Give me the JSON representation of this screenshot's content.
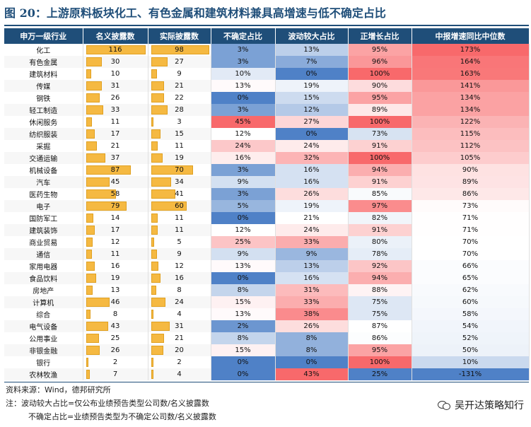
{
  "title": "图 20：上游原料板块化工、有色金属和建筑材料兼具高增速与低不确定占比",
  "columns": [
    "申万一级行业",
    "名义披露数",
    "实际披露数",
    "不确定占比",
    "波动较大占比",
    "正增长占比",
    "中报增速同比中位数"
  ],
  "colors": {
    "header_bg": "#1f4e79",
    "bar": "#f5b942",
    "blue_scale_end": "#4f81c7",
    "red_scale_end": "#f8696b"
  },
  "scales": {
    "uncertain_max": 45,
    "volatile_max": 43,
    "positive_min": 25,
    "positive_max": 100,
    "median_min": -131,
    "median_max": 173,
    "nominal_max": 116,
    "actual_max": 98
  },
  "rows": [
    {
      "industry": "化工",
      "nominal": 116,
      "actual": 98,
      "uncertain": 3,
      "volatile": 13,
      "positive": 95,
      "median": 173
    },
    {
      "industry": "有色金属",
      "nominal": 30,
      "actual": 27,
      "uncertain": 3,
      "volatile": 7,
      "positive": 96,
      "median": 164
    },
    {
      "industry": "建筑材料",
      "nominal": 10,
      "actual": 9,
      "uncertain": 10,
      "volatile": 0,
      "positive": 100,
      "median": 163
    },
    {
      "industry": "传媒",
      "nominal": 31,
      "actual": 21,
      "uncertain": 13,
      "volatile": 19,
      "positive": 90,
      "median": 141
    },
    {
      "industry": "钢铁",
      "nominal": 26,
      "actual": 22,
      "uncertain": 0,
      "volatile": 15,
      "positive": 95,
      "median": 134
    },
    {
      "industry": "轻工制造",
      "nominal": 33,
      "actual": 28,
      "uncertain": 3,
      "volatile": 12,
      "positive": 89,
      "median": 134
    },
    {
      "industry": "休闲服务",
      "nominal": 11,
      "actual": 3,
      "uncertain": 45,
      "volatile": 27,
      "positive": 100,
      "median": 122
    },
    {
      "industry": "纺织服装",
      "nominal": 17,
      "actual": 15,
      "uncertain": 12,
      "volatile": 0,
      "positive": 73,
      "median": 115
    },
    {
      "industry": "采掘",
      "nominal": 21,
      "actual": 11,
      "uncertain": 24,
      "volatile": 24,
      "positive": 91,
      "median": 112
    },
    {
      "industry": "交通运输",
      "nominal": 37,
      "actual": 19,
      "uncertain": 16,
      "volatile": 32,
      "positive": 100,
      "median": 105
    },
    {
      "industry": "机械设备",
      "nominal": 87,
      "actual": 70,
      "uncertain": 3,
      "volatile": 16,
      "positive": 94,
      "median": 90
    },
    {
      "industry": "汽车",
      "nominal": 45,
      "actual": 34,
      "uncertain": 9,
      "volatile": 16,
      "positive": 91,
      "median": 89
    },
    {
      "industry": "医药生物",
      "nominal": 58,
      "actual": 41,
      "uncertain": 3,
      "volatile": 26,
      "positive": 85,
      "median": 86
    },
    {
      "industry": "电子",
      "nominal": 79,
      "actual": 60,
      "uncertain": 5,
      "volatile": 19,
      "positive": 97,
      "median": 73
    },
    {
      "industry": "国防军工",
      "nominal": 14,
      "actual": 11,
      "uncertain": 0,
      "volatile": 21,
      "positive": 82,
      "median": 71
    },
    {
      "industry": "建筑装饰",
      "nominal": 17,
      "actual": 11,
      "uncertain": 12,
      "volatile": 24,
      "positive": 91,
      "median": 71
    },
    {
      "industry": "商业贸易",
      "nominal": 12,
      "actual": 5,
      "uncertain": 25,
      "volatile": 33,
      "positive": 80,
      "median": 70
    },
    {
      "industry": "通信",
      "nominal": 11,
      "actual": 9,
      "uncertain": 9,
      "volatile": 9,
      "positive": 78,
      "median": 70
    },
    {
      "industry": "家用电器",
      "nominal": 16,
      "actual": 12,
      "uncertain": 13,
      "volatile": 13,
      "positive": 92,
      "median": 66
    },
    {
      "industry": "食品饮料",
      "nominal": 19,
      "actual": 16,
      "uncertain": 0,
      "volatile": 16,
      "positive": 94,
      "median": 65
    },
    {
      "industry": "房地产",
      "nominal": 13,
      "actual": 8,
      "uncertain": 8,
      "volatile": 31,
      "positive": 88,
      "median": 62
    },
    {
      "industry": "计算机",
      "nominal": 46,
      "actual": 24,
      "uncertain": 15,
      "volatile": 33,
      "positive": 75,
      "median": 60
    },
    {
      "industry": "综合",
      "nominal": 8,
      "actual": 4,
      "uncertain": 13,
      "volatile": 38,
      "positive": 75,
      "median": 58
    },
    {
      "industry": "电气设备",
      "nominal": 43,
      "actual": 31,
      "uncertain": 2,
      "volatile": 26,
      "positive": 87,
      "median": 54
    },
    {
      "industry": "公用事业",
      "nominal": 25,
      "actual": 21,
      "uncertain": 8,
      "volatile": 8,
      "positive": 86,
      "median": 52
    },
    {
      "industry": "非银金融",
      "nominal": 26,
      "actual": 20,
      "uncertain": 15,
      "volatile": 8,
      "positive": 95,
      "median": 50
    },
    {
      "industry": "银行",
      "nominal": 2,
      "actual": 2,
      "uncertain": 0,
      "volatile": 0,
      "positive": 100,
      "median": 10
    },
    {
      "industry": "农林牧渔",
      "nominal": 7,
      "actual": 4,
      "uncertain": 0,
      "volatile": 43,
      "positive": 25,
      "median": -131
    }
  ],
  "footer": {
    "source": "资料来源：Wind，德邦研究所",
    "note1": "注：波动较大占比=仅公布业绩预告类型公司数/名义披露数",
    "note2": "不确定占比=业绩预告类型为不确定公司数/名义披露数",
    "brand": "吴开达策略知行"
  }
}
